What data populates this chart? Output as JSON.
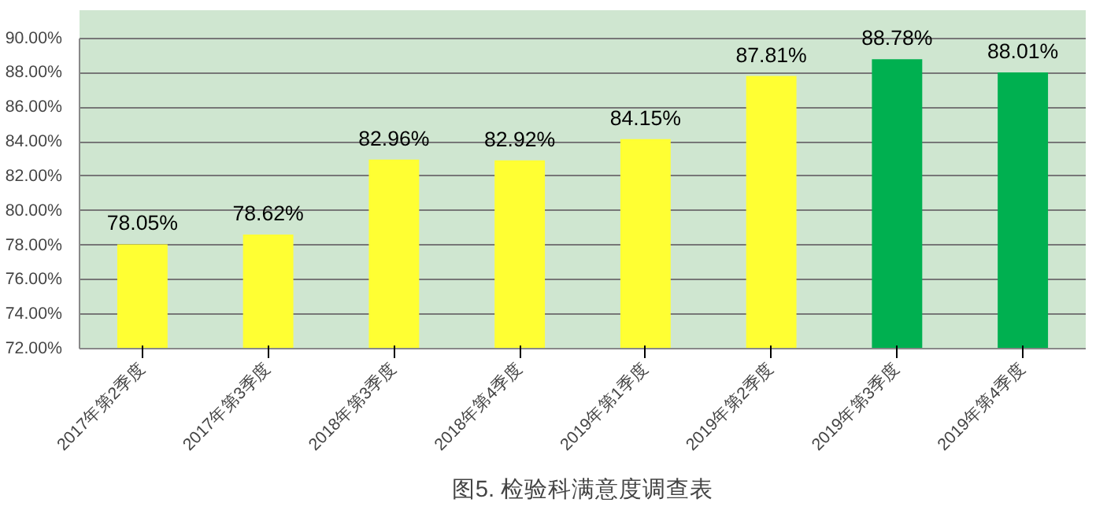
{
  "chart_data": {
    "type": "bar",
    "categories": [
      "2017年第2季度",
      "2017年第3季度",
      "2018年第3季度",
      "2018年第4季度",
      "2019年第1季度",
      "2019年第2季度",
      "2019年第3季度",
      "2019年第4季度"
    ],
    "values": [
      78.05,
      78.62,
      82.96,
      82.92,
      84.15,
      87.81,
      88.78,
      88.01
    ],
    "colors": [
      "#ffff33",
      "#ffff33",
      "#ffff33",
      "#ffff33",
      "#ffff33",
      "#ffff33",
      "#00b050",
      "#00b050"
    ],
    "value_labels": [
      "78.05%",
      "78.62%",
      "82.96%",
      "82.92%",
      "84.15%",
      "87.81%",
      "88.78%",
      "88.01%"
    ],
    "ylim": [
      72,
      90
    ],
    "yticks": [
      {
        "value": 72,
        "label": "72.00%"
      },
      {
        "value": 74,
        "label": "74.00%"
      },
      {
        "value": 76,
        "label": "76.00%"
      },
      {
        "value": 78,
        "label": "78.00%"
      },
      {
        "value": 80,
        "label": "80.00%"
      },
      {
        "value": 82,
        "label": "82.00%"
      },
      {
        "value": 84,
        "label": "84.00%"
      },
      {
        "value": 86,
        "label": "86.00%"
      },
      {
        "value": 88,
        "label": "88.00%"
      },
      {
        "value": 90,
        "label": "90.00%"
      }
    ],
    "grid": "y",
    "annotations": [
      "图5. 检验科满意度调查表"
    ]
  }
}
